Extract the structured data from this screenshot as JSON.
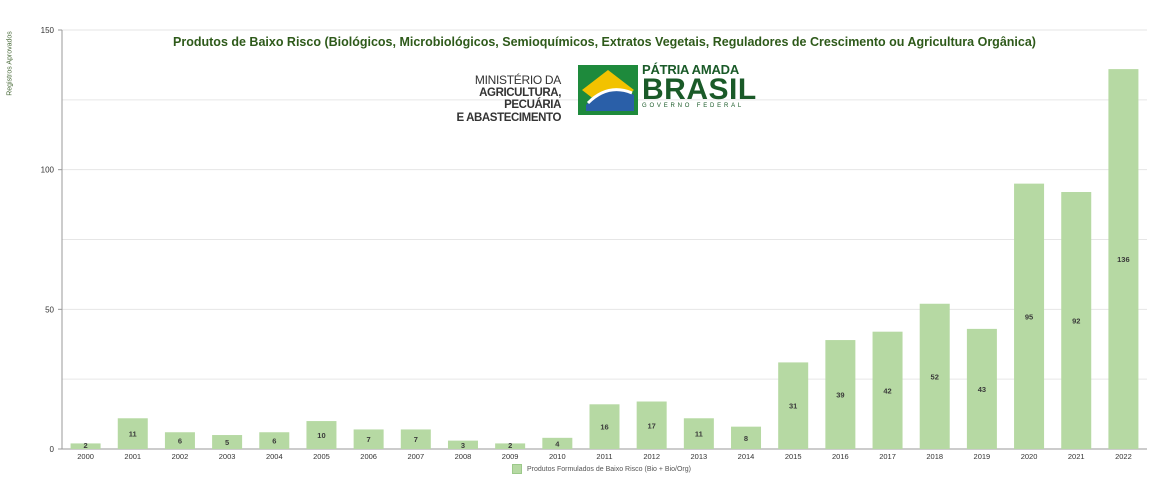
{
  "chart_data": {
    "type": "bar",
    "title": "Produtos de Baixo Risco (Biológicos, Microbiológicos, Semioquímicos, Extratos Vegetais, Reguladores de Crescimento ou Agricultura Orgânica)",
    "xlabel": "",
    "ylabel": "Registros Aprovados",
    "ylim": [
      0,
      150
    ],
    "yticks": [
      0,
      50,
      100,
      150
    ],
    "grid": true,
    "legend_position": "bottom",
    "categories": [
      "2000",
      "2001",
      "2002",
      "2003",
      "2004",
      "2005",
      "2006",
      "2007",
      "2008",
      "2009",
      "2010",
      "2011",
      "2012",
      "2013",
      "2014",
      "2015",
      "2016",
      "2017",
      "2018",
      "2019",
      "2020",
      "2021",
      "2022"
    ],
    "series": [
      {
        "name": "Produtos Formulados de Baixo Risco (Bio + Bio/Org)",
        "values": [
          2,
          11,
          6,
          5,
          6,
          10,
          7,
          7,
          3,
          2,
          4,
          16,
          17,
          11,
          8,
          31,
          39,
          42,
          52,
          43,
          95,
          92,
          136
        ],
        "color": "#b6d9a3"
      }
    ]
  },
  "logo": {
    "ministry_line1": "MINISTÉRIO DA",
    "ministry_line2": "AGRICULTURA, PECUÁRIA",
    "ministry_line3": "E ABASTECIMENTO",
    "patria_line1": "PÁTRIA AMADA",
    "patria_line2": "BRASIL",
    "patria_line3": "GOVERNO FEDERAL"
  },
  "colors": {
    "bar": "#b6d9a3",
    "title": "#2e5a1a",
    "grid": "#e6e6e6",
    "brand_green": "#1a5a28",
    "brand_yellow": "#f2c200",
    "brand_blue": "#2a5fa8"
  }
}
